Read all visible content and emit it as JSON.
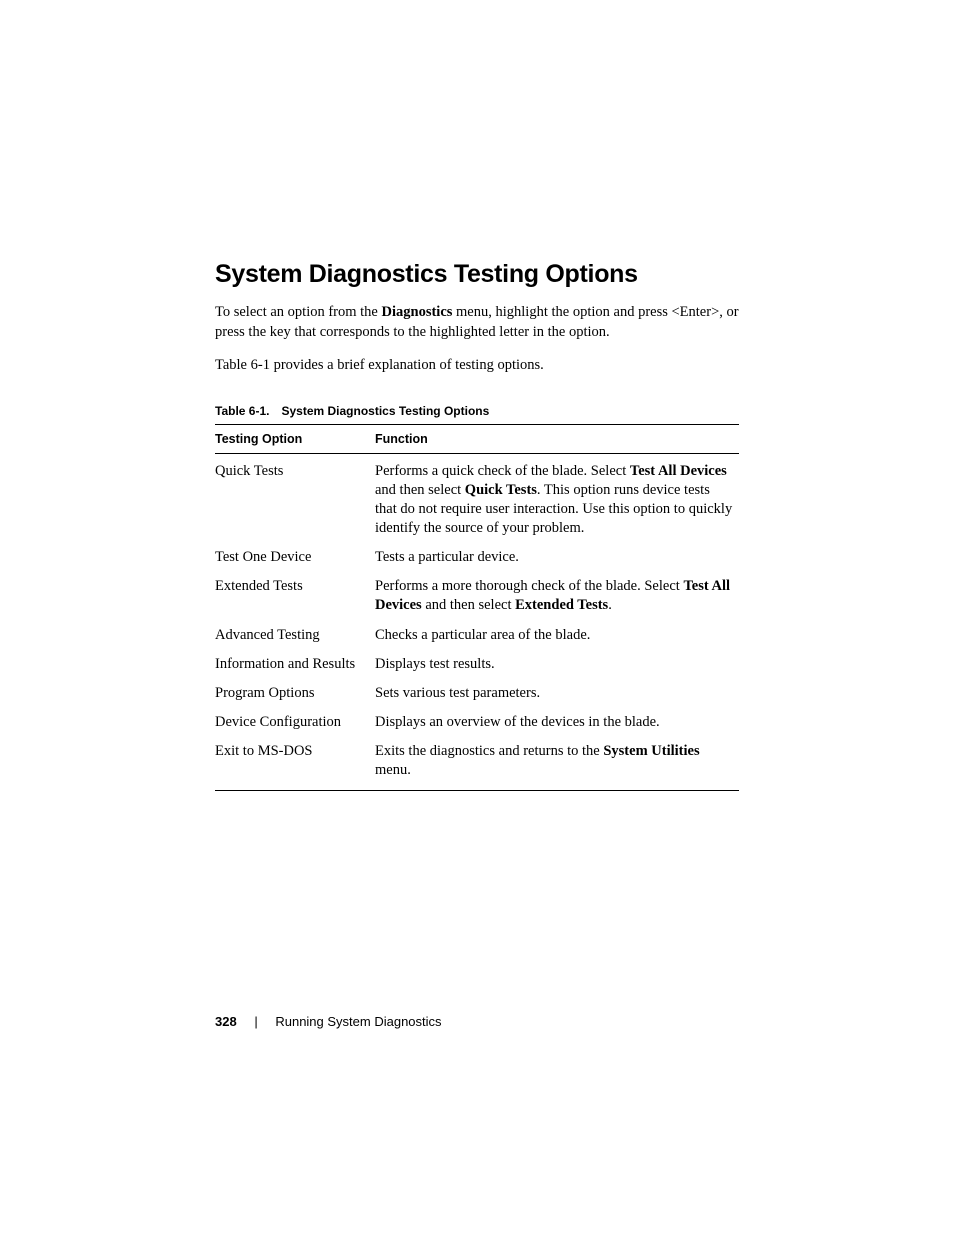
{
  "heading": "System Diagnostics Testing Options",
  "intro_parts": {
    "p1a": "To select an option from the ",
    "p1_bold1": "Diagnostics",
    "p1b": " menu, highlight the option and press <Enter>, or press the key that corresponds to the highlighted letter in the option."
  },
  "intro2": "Table 6-1 provides a brief explanation of testing options.",
  "table": {
    "caption_label": "Table 6-1.",
    "caption_title": "System Diagnostics Testing Options",
    "columns": [
      "Testing Option",
      "Function"
    ],
    "rows": [
      {
        "option": "Quick Tests",
        "func_parts": [
          {
            "t": "Performs a quick check of the blade. Select "
          },
          {
            "t": "Test All Devices",
            "b": true
          },
          {
            "t": " and then select "
          },
          {
            "t": "Quick Tests",
            "b": true
          },
          {
            "t": ". This option runs device tests that do not require user interaction. Use this option to quickly identify the source of your problem."
          }
        ]
      },
      {
        "option": "Test One Device",
        "func_parts": [
          {
            "t": "Tests a particular device."
          }
        ]
      },
      {
        "option": "Extended Tests",
        "func_parts": [
          {
            "t": "Performs a more thorough check of the blade. Select "
          },
          {
            "t": "Test All Devices",
            "b": true
          },
          {
            "t": " and then select "
          },
          {
            "t": "Extended Tests",
            "b": true
          },
          {
            "t": "."
          }
        ]
      },
      {
        "option": "Advanced Testing",
        "func_parts": [
          {
            "t": "Checks a particular area of the blade."
          }
        ]
      },
      {
        "option": "Information and Results",
        "func_parts": [
          {
            "t": "Displays test results."
          }
        ]
      },
      {
        "option": "Program Options",
        "func_parts": [
          {
            "t": "Sets various test parameters."
          }
        ]
      },
      {
        "option": "Device Configuration",
        "func_parts": [
          {
            "t": "Displays an overview of the devices in the blade."
          }
        ]
      },
      {
        "option": "Exit to MS-DOS",
        "func_parts": [
          {
            "t": "Exits the diagnostics and returns to the "
          },
          {
            "t": "System Utilities",
            "b": true
          },
          {
            "t": " menu."
          }
        ]
      }
    ]
  },
  "footer": {
    "page_num": "328",
    "section": "Running System Diagnostics"
  }
}
